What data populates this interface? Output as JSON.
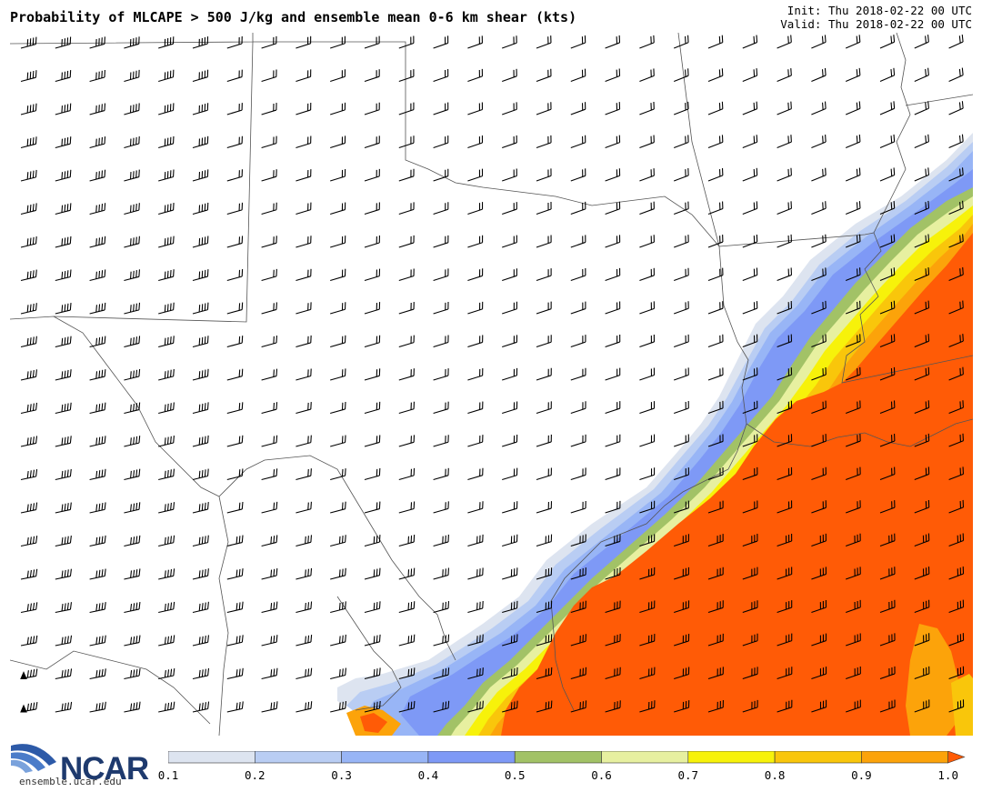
{
  "header": {
    "title": "Probability of MLCAPE > 500 J/kg and ensemble mean 0-6 km shear (kts)",
    "init": "Init: Thu 2018-02-22 00 UTC",
    "valid": "Valid: Thu 2018-02-22 00 UTC"
  },
  "logo": {
    "name": "NCAR",
    "url": "ensemble.ucar.edu"
  },
  "colorbar": {
    "ticks": [
      "0.1",
      "0.2",
      "0.3",
      "0.4",
      "0.5",
      "0.6",
      "0.7",
      "0.8",
      "0.9",
      "1.0"
    ],
    "colors": [
      "#dde4f0",
      "#b9cdf3",
      "#98b5f6",
      "#7e99f6",
      "#a2c266",
      "#e7f0a0",
      "#f7f20a",
      "#f9c60b",
      "#fca30a"
    ],
    "extend_color": "#ff5b06"
  },
  "map": {
    "region": "Southern Plains and Gulf Coast",
    "barb_color": "#000000",
    "border_color": "#555555"
  }
}
